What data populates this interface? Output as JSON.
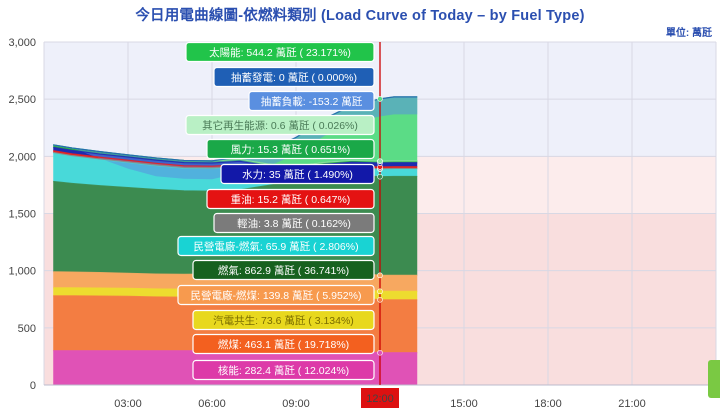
{
  "header": {
    "title": "今日用電曲線圖-依燃料類別 (Load Curve of Today – by Fuel Type)",
    "unit": "單位: 萬瓩"
  },
  "colors": {
    "day_band": "#eef0fa",
    "red_band": "#f9dede",
    "cursor": "#cc0000",
    "cursor_label_bg": "#dd1111"
  },
  "chart_data": {
    "type": "area",
    "stacked": true,
    "x_ticks": [
      "03:00",
      "06:00",
      "09:00",
      "12:00",
      "15:00",
      "18:00",
      "21:00"
    ],
    "y_ticks": [
      "0",
      "500",
      "1,000",
      "1,500",
      "2,000",
      "2,500",
      "3,000"
    ],
    "ylim": [
      0,
      3000
    ],
    "xlim_hours": [
      0,
      24
    ],
    "cursor_label": "12:00",
    "times": [
      0.33,
      1,
      2,
      3,
      4,
      5,
      6,
      7,
      8,
      9,
      10,
      11,
      12,
      12.5,
      13.33
    ],
    "series": [
      {
        "name": "核能",
        "color": "#e052b6",
        "values": [
          300,
          300,
          300,
          300,
          300,
          300,
          300,
          300,
          300,
          300,
          300,
          300,
          282,
          282,
          282
        ]
      },
      {
        "name": "燃煤",
        "color": "#f37d42",
        "values": [
          480,
          480,
          478,
          475,
          470,
          468,
          468,
          470,
          475,
          475,
          475,
          470,
          463,
          463,
          463
        ]
      },
      {
        "name": "汽電共生",
        "color": "#eddc2f",
        "values": [
          70,
          70,
          70,
          70,
          70,
          70,
          72,
          72,
          72,
          72,
          73,
          74,
          74,
          74,
          74
        ]
      },
      {
        "name": "民營電廠-燃煤",
        "color": "#f7a860",
        "values": [
          140,
          138,
          135,
          132,
          130,
          130,
          130,
          135,
          138,
          140,
          140,
          140,
          140,
          140,
          140
        ]
      },
      {
        "name": "燃氣",
        "color": "#3c8b50",
        "values": [
          790,
          775,
          760,
          750,
          740,
          730,
          725,
          730,
          760,
          800,
          830,
          850,
          863,
          865,
          865
        ]
      },
      {
        "name": "民營電廠-燃氣",
        "color": "#48d9d9",
        "values": [
          250,
          240,
          230,
          220,
          210,
          200,
          200,
          200,
          120,
          60,
          60,
          62,
          66,
          66,
          66
        ]
      },
      {
        "name": "輕油",
        "color": "#8a8a8a",
        "values": [
          4,
          4,
          4,
          4,
          4,
          4,
          4,
          4,
          4,
          4,
          4,
          4,
          4,
          4,
          4
        ]
      },
      {
        "name": "重油",
        "color": "#e62020",
        "values": [
          15,
          15,
          15,
          15,
          15,
          15,
          15,
          15,
          15,
          15,
          15,
          15,
          15,
          15,
          15
        ]
      },
      {
        "name": "水力",
        "color": "#1f2bb0",
        "values": [
          30,
          30,
          28,
          28,
          28,
          28,
          28,
          30,
          32,
          32,
          33,
          34,
          35,
          35,
          35
        ]
      },
      {
        "name": "風力",
        "color": "#2cae49",
        "values": [
          20,
          20,
          20,
          18,
          18,
          18,
          17,
          17,
          16,
          16,
          16,
          15,
          15,
          15,
          15
        ]
      },
      {
        "name": "其它再生能源",
        "color": "#8fe3a4",
        "values": [
          1,
          1,
          1,
          1,
          1,
          1,
          1,
          1,
          1,
          1,
          1,
          1,
          1,
          1,
          1
        ]
      },
      {
        "name": "太陽能",
        "color": "#5bdc86",
        "values": [
          0,
          0,
          0,
          0,
          0,
          0,
          0,
          20,
          120,
          250,
          380,
          480,
          544,
          560,
          560
        ]
      },
      {
        "name": "抽蓄發電",
        "color": "#1f5fb5",
        "values": [
          0,
          0,
          0,
          0,
          0,
          0,
          0,
          0,
          0,
          0,
          0,
          0,
          0,
          0,
          0
        ]
      },
      {
        "name": "抽蓄負載",
        "color": "#5a8fe0",
        "values": [
          0,
          0,
          -60,
          -120,
          -160,
          -160,
          -160,
          -140,
          -140,
          -150,
          -150,
          -153,
          -153,
          -153,
          -153
        ]
      }
    ],
    "tooltip_items": [
      {
        "text": "太陽能: 544.2 萬瓩 ( 23.171%)",
        "bg": "#21c44a",
        "fg": "#ffffff"
      },
      {
        "text": "抽蓄發電: 0 萬瓩 ( 0.000%)",
        "bg": "#1f5fb5",
        "fg": "#ffffff"
      },
      {
        "text": "抽蓄負載: -153.2 萬瓩",
        "bg": "#5a8fe0",
        "fg": "#ffffff"
      },
      {
        "text": "其它再生能源: 0.6 萬瓩 ( 0.026%)",
        "bg": "#b9f0c5",
        "fg": "#4a7a57"
      },
      {
        "text": "風力: 15.3 萬瓩 ( 0.651%)",
        "bg": "#1aa848",
        "fg": "#ffffff"
      },
      {
        "text": "水力: 35 萬瓩 ( 1.490%)",
        "bg": "#1218a8",
        "fg": "#ffffff"
      },
      {
        "text": "重油: 15.2 萬瓩 ( 0.647%)",
        "bg": "#e41212",
        "fg": "#ffffff"
      },
      {
        "text": "輕油: 3.8 萬瓩 ( 0.162%)",
        "bg": "#7b7b7b",
        "fg": "#ffffff"
      },
      {
        "text": "民營電廠-燃氣: 65.9 萬瓩 ( 2.806%)",
        "bg": "#19d3d3",
        "fg": "#ffffff"
      },
      {
        "text": "燃氣: 862.9 萬瓩 ( 36.741%)",
        "bg": "#17611f",
        "fg": "#ffffff"
      },
      {
        "text": "民營電廠-燃煤: 139.8 萬瓩 ( 5.952%)",
        "bg": "#f79a4e",
        "fg": "#ffffff"
      },
      {
        "text": "汽電共生: 73.6 萬瓩 ( 3.134%)",
        "bg": "#e8d81e",
        "fg": "#7a6c00"
      },
      {
        "text": "燃煤: 463.1 萬瓩 ( 19.718%)",
        "bg": "#f3601f",
        "fg": "#ffffff"
      },
      {
        "text": "核能: 282.4 萬瓩 ( 12.024%)",
        "bg": "#dd3aa8",
        "fg": "#ffffff"
      }
    ]
  }
}
